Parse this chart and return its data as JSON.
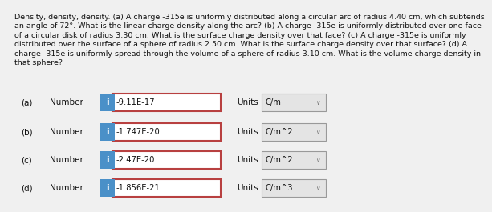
{
  "title_text": "Density, density, density. (a) A charge -315e is uniformly distributed along a circular arc of radius 4.40 cm, which subtends\nan angle of 72°. What is the linear charge density along the arc? (b) A charge -315e is uniformly distributed over one face\nof a circular disk of radius 3.30 cm. What is the surface charge density over that face? (c) A charge -315e is uniformly\ndistributed over the surface of a sphere of radius 2.50 cm. What is the surface charge density over that surface? (d) A\ncharge -315e is uniformly spread through the volume of a sphere of radius 3.10 cm. What is the volume charge density in\nthat sphere?",
  "rows": [
    {
      "label": "(a)",
      "value": "-9.11E-17",
      "units": "C/m"
    },
    {
      "label": "(b)",
      "value": "-1.747E-20",
      "units": "C/m^2"
    },
    {
      "label": "(c)",
      "value": "-2.47E-20",
      "units": "C/m^2"
    },
    {
      "label": "(d)",
      "value": "-1.856E-21",
      "units": "C/m^3"
    }
  ],
  "bg_color": "#f0f0f0",
  "box_border_color": "#b84040",
  "info_btn_color": "#4a90c8",
  "units_box_color": "#e4e4e4",
  "units_box_border": "#999999",
  "text_color": "#111111",
  "title_fontsize": 6.8,
  "body_fontsize": 7.5,
  "value_fontsize": 7.2,
  "units_fontsize": 7.2
}
